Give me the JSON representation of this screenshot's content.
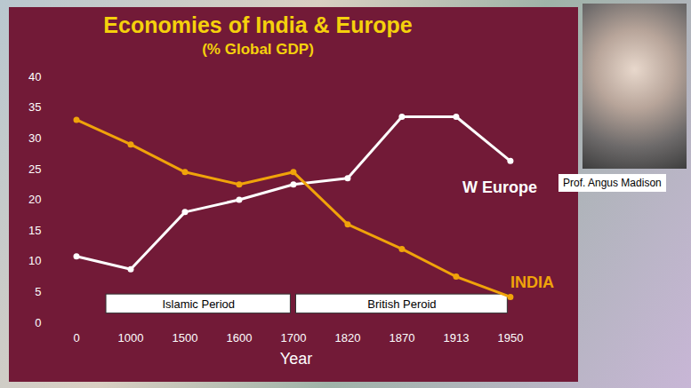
{
  "chart_data": {
    "type": "line",
    "title": "Economies of India & Europe",
    "subtitle": "(% Global GDP)",
    "x_label": "Year",
    "categories": [
      "0",
      "1000",
      "1500",
      "1600",
      "1700",
      "1820",
      "1870",
      "1913",
      "1950"
    ],
    "series": [
      {
        "name": "W Europe",
        "color": "#ffffff",
        "values": [
          10.8,
          8.7,
          18,
          20,
          22.5,
          23.5,
          33.5,
          33.5,
          26.3
        ]
      },
      {
        "name": "INDIA",
        "color": "#f0a30a",
        "values": [
          33,
          29,
          24.5,
          22.5,
          24.5,
          16,
          12,
          7.5,
          4.2
        ]
      }
    ],
    "ylim": [
      0,
      40
    ],
    "yticks": [
      0,
      5,
      10,
      15,
      20,
      25,
      30,
      35,
      40
    ],
    "grid": false,
    "marker": "circle",
    "annotations": [
      {
        "text": "Islamic Period",
        "start": "1000",
        "end": "1700"
      },
      {
        "text": "British Peroid",
        "start": "1700",
        "end": "1950"
      }
    ],
    "caption": "Prof. Angus Madison"
  }
}
